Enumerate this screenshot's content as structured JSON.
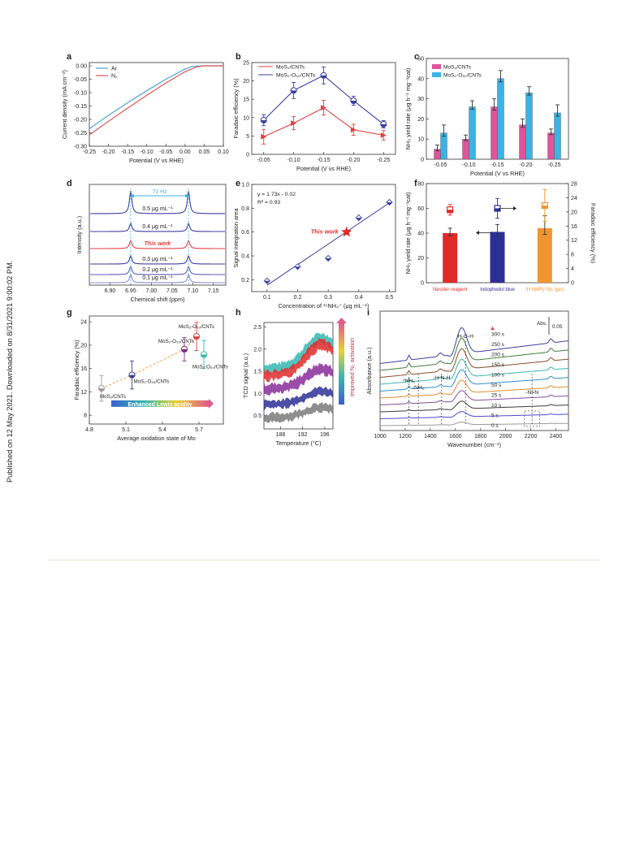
{
  "margin_note": "Published on 12 May 2021. Downloaded on 8/31/2021 9:00:02 PM.",
  "colors": {
    "red": "#e0413f",
    "blue": "#3b3fa0",
    "pink": "#e0559a",
    "cyan": "#3ab3e6",
    "ar": "#4aa3d6",
    "n2": "#e05555",
    "orange": "#f0952f",
    "darkred": "#e02a2a",
    "navy": "#2e2f95"
  },
  "panels": {
    "a": {
      "letter": "a"
    },
    "b": {
      "letter": "b"
    },
    "c": {
      "letter": "c"
    },
    "d": {
      "letter": "d"
    },
    "e": {
      "letter": "e"
    },
    "f": {
      "letter": "f"
    },
    "g": {
      "letter": "g"
    },
    "h": {
      "letter": "h"
    },
    "i": {
      "letter": "i"
    }
  },
  "chart_data": [
    {
      "panel": "a",
      "type": "line",
      "xlabel": "Potential (V vs RHE)",
      "ylabel": "Current density (mA cm⁻²)",
      "xlim": [
        -0.25,
        0.1
      ],
      "ylim": [
        -0.3,
        0.0
      ],
      "xticks": [
        "-0.25",
        "-0.20",
        "-0.15",
        "-0.10",
        "-0.05",
        "0.00",
        "0.05",
        "0.10"
      ],
      "yticks": [
        "0.00",
        "-0.05",
        "-0.10",
        "-0.15",
        "-0.20",
        "-0.25",
        "-0.30"
      ],
      "legend": [
        "Ar",
        "N₂"
      ],
      "series": [
        {
          "name": "Ar",
          "x": [
            -0.25,
            -0.2,
            -0.15,
            -0.1,
            -0.05,
            0.0,
            0.02,
            0.05,
            0.1
          ],
          "y": [
            -0.235,
            -0.185,
            -0.138,
            -0.093,
            -0.05,
            -0.012,
            -0.002,
            0.0,
            0.0
          ]
        },
        {
          "name": "N₂",
          "x": [
            -0.25,
            -0.2,
            -0.15,
            -0.1,
            -0.05,
            0.0,
            0.03,
            0.05,
            0.1
          ],
          "y": [
            -0.258,
            -0.207,
            -0.158,
            -0.11,
            -0.064,
            -0.022,
            -0.004,
            0.0,
            0.0
          ]
        }
      ]
    },
    {
      "panel": "b",
      "type": "line",
      "xlabel": "Potential (V vs RHE)",
      "ylabel": "Faradaic efficiency (%)",
      "xlim": [
        -0.02,
        -0.28
      ],
      "ylim": [
        0,
        25
      ],
      "categories": [
        "-0.05",
        "-0.10",
        "-0.15",
        "-0.20",
        "-0.25"
      ],
      "yticks": [
        "0",
        "5",
        "10",
        "15",
        "20",
        "25"
      ],
      "legend": [
        "MoS₂/CNTs",
        "MoS₂-O₅₀/CNTs"
      ],
      "series": [
        {
          "name": "MoS₂/CNTs",
          "x": [
            -0.05,
            -0.1,
            -0.15,
            -0.2,
            -0.25
          ],
          "y": [
            4.8,
            8.5,
            12.7,
            6.7,
            5.2
          ],
          "err": [
            2.0,
            1.8,
            2.0,
            1.5,
            1.3
          ]
        },
        {
          "name": "MoS₂-O₅₀/CNTs",
          "x": [
            -0.05,
            -0.1,
            -0.15,
            -0.2,
            -0.25
          ],
          "y": [
            9.3,
            17.4,
            21.5,
            14.6,
            8.2
          ],
          "err": [
            1.5,
            2.2,
            2.3,
            1.2,
            1.0
          ]
        }
      ]
    },
    {
      "panel": "c",
      "type": "bar",
      "xlabel": "Potential (V vs RHE)",
      "ylabel": "NH₃ yield rate (μg h⁻¹ mg⁻¹cat)",
      "categories": [
        "-0.05",
        "-0.10",
        "-0.15",
        "-0.20",
        "-0.25"
      ],
      "ylim": [
        0,
        50
      ],
      "yticks": [
        "0",
        "10",
        "20",
        "30",
        "40",
        "50"
      ],
      "legend": [
        "MoS₂/CNTs",
        "MoS₂-O₅₀/CNTs"
      ],
      "series": [
        {
          "name": "MoS₂/CNTs",
          "values": [
            5,
            10,
            26,
            17,
            13
          ],
          "err": [
            2,
            2,
            4,
            3,
            2
          ]
        },
        {
          "name": "MoS₂-O₅₀/CNTs",
          "values": [
            13,
            26,
            40,
            33,
            23
          ],
          "err": [
            4,
            3,
            4,
            3,
            4
          ]
        }
      ]
    },
    {
      "panel": "d",
      "type": "line",
      "xlabel": "Chemical shift (ppm)",
      "ylabel": "Intensity (a.u.)",
      "xlim": [
        6.85,
        7.18
      ],
      "xticks": [
        "6.90",
        "6.95",
        "7.00",
        "7.05",
        "7.10",
        "7.15"
      ],
      "annotation": "71 Hz",
      "peaks": [
        6.95,
        7.09
      ],
      "series": [
        {
          "name": "0.5 μg mL⁻¹",
          "color": "#3b3fa0"
        },
        {
          "name": "0.4 μg mL⁻¹",
          "color": "#3b3fa0"
        },
        {
          "name": "This work",
          "color": "#e0413f"
        },
        {
          "name": "0.3 μg mL⁻¹",
          "color": "#3b3fa0"
        },
        {
          "name": "0.2 μg mL⁻¹",
          "color": "#5b5fb8"
        },
        {
          "name": "0.1 μg mL⁻¹",
          "color": "#8a8ccf"
        }
      ]
    },
    {
      "panel": "e",
      "type": "scatter",
      "xlabel": "Concentration of ¹⁵NH₄⁺ (μg mL⁻¹)",
      "ylabel": "Signal integration area",
      "xlim": [
        0.05,
        0.52
      ],
      "ylim": [
        0.1,
        1.0
      ],
      "xticks": [
        "0.1",
        "0.2",
        "0.3",
        "0.4",
        "0.5"
      ],
      "yticks": [
        "0.2",
        "0.4",
        "0.6",
        "0.8",
        "1.0"
      ],
      "equation": "y = 1.73x - 0.02",
      "r2": "R² = 0.93",
      "points": [
        {
          "x": 0.1,
          "y": 0.19
        },
        {
          "x": 0.2,
          "y": 0.31
        },
        {
          "x": 0.3,
          "y": 0.38
        },
        {
          "x": 0.4,
          "y": 0.72
        },
        {
          "x": 0.5,
          "y": 0.85
        }
      ],
      "this_work": {
        "label": "This work",
        "x": 0.36,
        "y": 0.6
      },
      "fit": {
        "x": [
          0.1,
          0.5
        ],
        "y": [
          0.153,
          0.845
        ]
      }
    },
    {
      "panel": "f",
      "type": "bar",
      "ylabel": "NH₃ yield rate (μg h⁻¹ mg⁻¹cat)",
      "y2label": "Faradaic efficiency (%)",
      "categories": [
        "Nessler reagent",
        "Indophedol blue",
        "¹H NMR(¹⁵N₂ gas)"
      ],
      "ylim": [
        0,
        80
      ],
      "yticks": [
        "0",
        "20",
        "40",
        "60",
        "80"
      ],
      "y2lim": [
        0,
        28
      ],
      "y2ticks": [
        "0",
        "4",
        "8",
        "12",
        "16",
        "20",
        "24",
        "28"
      ],
      "yield": [
        40,
        41,
        44
      ],
      "yield_err": [
        4,
        6,
        10
      ],
      "fe": [
        20.6,
        21.0,
        21.8
      ],
      "fe_err": [
        1.5,
        2.8,
        4.5
      ]
    },
    {
      "panel": "g",
      "type": "scatter",
      "xlabel": "Average oxidation state of Mo",
      "ylabel": "Faradaic efficiency (%)",
      "xlim": [
        4.8,
        5.9
      ],
      "ylim": [
        6.5,
        25
      ],
      "xticks": [
        "4.8",
        "5.1",
        "5.4",
        "5.7"
      ],
      "xticks_minor": [
        "4.8",
        "5.0",
        "5.2",
        "5.4",
        "5.6",
        "5.8"
      ],
      "yticks": [
        "8",
        "12",
        "16",
        "20",
        "24"
      ],
      "arrow_label": "Enhanced Lewis acidity",
      "points": [
        {
          "label": "MoS₂/CNTs",
          "x": 4.9,
          "y": 12.6,
          "err": 2.2,
          "color": "#9a9a9a"
        },
        {
          "label": "MoS₂-O₂₅/CNTs",
          "x": 5.15,
          "y": 14.9,
          "err": 2.4,
          "color": "#3b3fa0"
        },
        {
          "label": "MoS₂-O₃₀/CNTs",
          "x": 5.58,
          "y": 19.3,
          "err": 2.0,
          "color": "#7a2d8c"
        },
        {
          "label": "MoS₂-O₅₀/CNTs",
          "x": 5.68,
          "y": 21.5,
          "err": 2.4,
          "color": "#e0413f"
        },
        {
          "label": "MoS₂-O₆₀/CNTs",
          "x": 5.74,
          "y": 18.4,
          "err": 2.4,
          "color": "#35b7b0"
        }
      ]
    },
    {
      "panel": "h",
      "type": "line",
      "xlabel": "Temperature (°C)",
      "ylabel": "TCD signal (a.u.)",
      "xlim": [
        185,
        197.5
      ],
      "ylim": [
        0.2,
        2.6
      ],
      "xticks": [
        "188",
        "192",
        "196"
      ],
      "yticks": [
        "0.5",
        "1.0",
        "1.5",
        "2.0",
        "2.5"
      ],
      "arrow_label": "Improved N₂ activation",
      "series": [
        {
          "color": "#35b7b0",
          "base": 1.55,
          "peak": 2.25
        },
        {
          "color": "#e02a2a",
          "base": 1.4,
          "peak": 2.1
        },
        {
          "color": "#8a2d9a",
          "base": 1.1,
          "peak": 1.55
        },
        {
          "color": "#2e2f95",
          "base": 0.75,
          "peak": 1.05
        },
        {
          "color": "#7a7a7a",
          "base": 0.45,
          "peak": 0.68
        }
      ]
    },
    {
      "panel": "i",
      "type": "line",
      "xlabel": "Wavenumber (cm⁻¹)",
      "ylabel": "Absorbance (a.u.)",
      "xlim": [
        1000,
        2500
      ],
      "xticks": [
        "1000",
        "1200",
        "1400",
        "1600",
        "1800",
        "2000",
        "2200",
        "2400"
      ],
      "scale_bar": "Abs. 0.05",
      "annotations": [
        "*NH₂",
        "-NH₂",
        "-H-N-H",
        "H-O-H",
        "-N=N"
      ],
      "times": [
        "300 s",
        "250 s",
        "200 s",
        "150 s",
        "100 s",
        "50 s",
        "25 s",
        "10 s",
        "5 s",
        "0 s"
      ],
      "colors": [
        "#3b3fa0",
        "#3f7d3a",
        "#8a4a2a",
        "#35b7b0",
        "#2e8ed0",
        "#e08a2a",
        "#8a4aa0",
        "#3a3a3a",
        "#4a4ad0",
        "#9a9a9a"
      ]
    }
  ]
}
